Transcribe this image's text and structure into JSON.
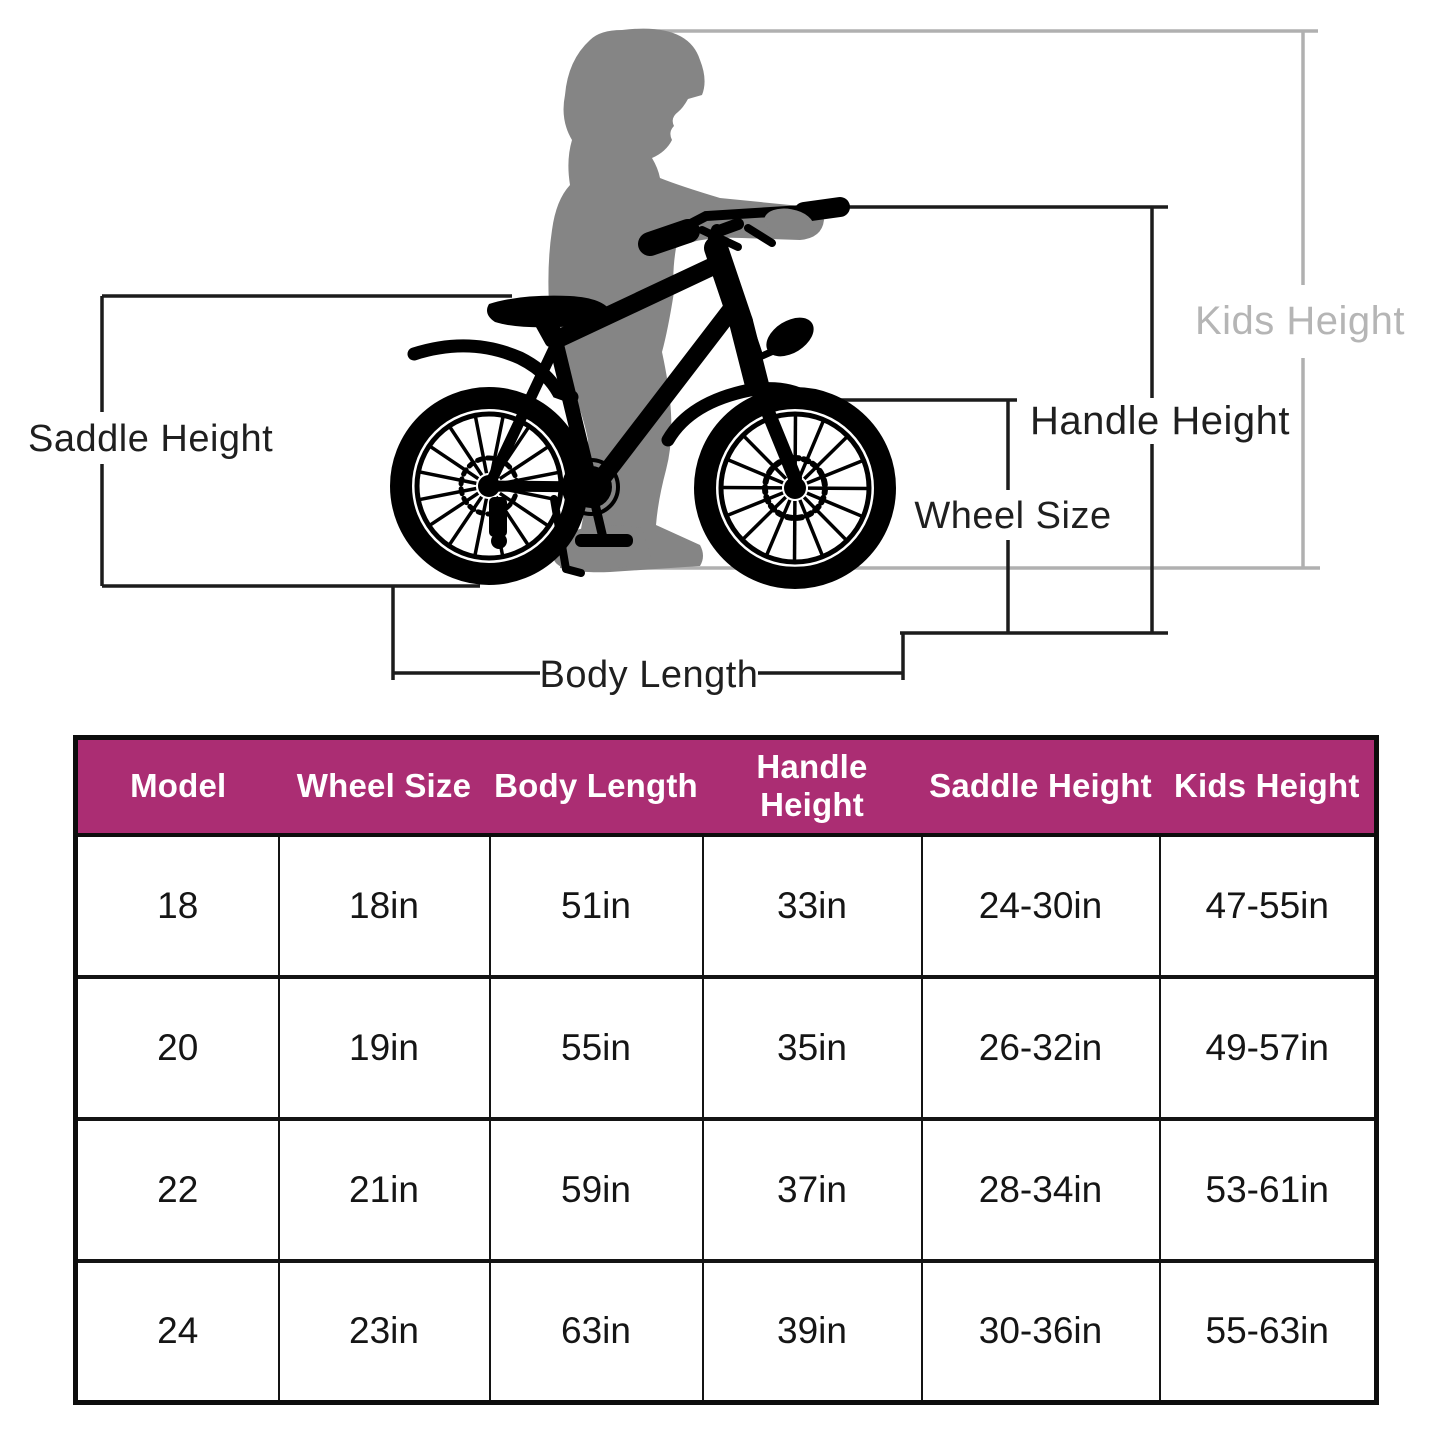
{
  "diagram": {
    "labels": {
      "saddle_height": "Saddle Height",
      "kids_height": "Kids Height",
      "handle_height": "Handle Height",
      "wheel_size": "Wheel Size",
      "body_length": "Body Length"
    }
  },
  "table": {
    "headers": [
      "Model",
      "Wheel Size",
      "Body Length",
      "Handle Height",
      "Saddle Height",
      "Kids Height"
    ],
    "rows": [
      [
        "18",
        "18in",
        "51in",
        "33in",
        "24-30in",
        "47-55in"
      ],
      [
        "20",
        "19in",
        "55in",
        "35in",
        "26-32in",
        "49-57in"
      ],
      [
        "22",
        "21in",
        "59in",
        "37in",
        "28-34in",
        "53-61in"
      ],
      [
        "24",
        "23in",
        "63in",
        "39in",
        "30-36in",
        "55-63in"
      ]
    ]
  },
  "colors": {
    "header_bg": "#ab2d73",
    "header_text": "#ffffff",
    "figure_gray": "#858585",
    "gray_line": "#b0b0b0",
    "gray_label": "#b5b5b5",
    "black_line": "#1c1c1c"
  }
}
